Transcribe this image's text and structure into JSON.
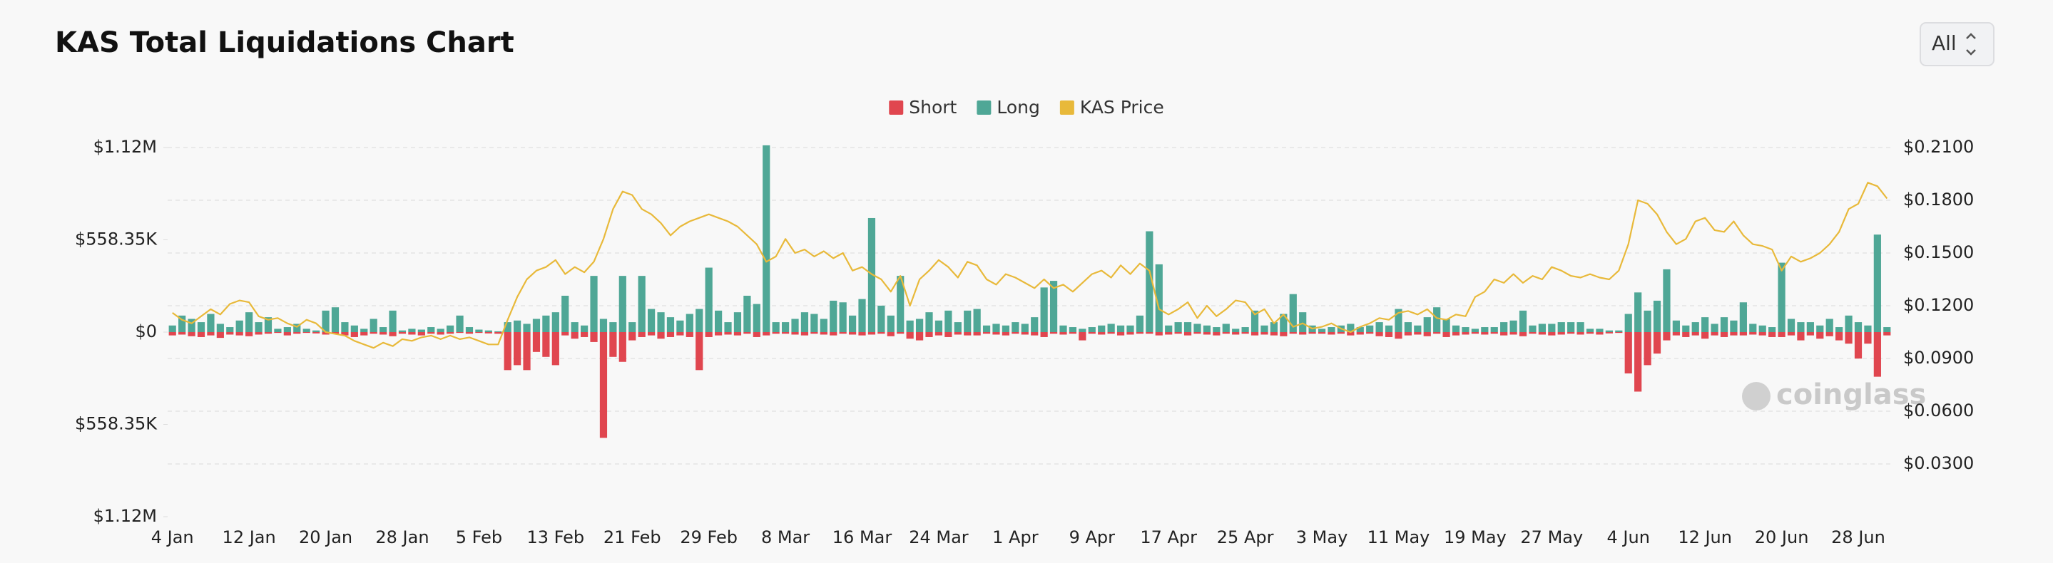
{
  "chart_data": {
    "type": "bar",
    "title": "KAS Total Liquidations Chart",
    "categories": [
      "4 Jan",
      null,
      null,
      null,
      null,
      null,
      null,
      null,
      "12 Jan",
      null,
      null,
      null,
      null,
      null,
      null,
      null,
      "20 Jan",
      null,
      null,
      null,
      null,
      null,
      null,
      null,
      "28 Jan",
      null,
      null,
      null,
      null,
      null,
      null,
      null,
      "5 Feb",
      null,
      null,
      null,
      null,
      null,
      null,
      null,
      "13 Feb",
      null,
      null,
      null,
      null,
      null,
      null,
      null,
      "21 Feb",
      null,
      null,
      null,
      null,
      null,
      null,
      null,
      "29 Feb",
      null,
      null,
      null,
      null,
      null,
      null,
      null,
      "8 Mar",
      null,
      null,
      null,
      null,
      null,
      null,
      null,
      "16 Mar",
      null,
      null,
      null,
      null,
      null,
      null,
      null,
      "24 Mar",
      null,
      null,
      null,
      null,
      null,
      null,
      null,
      "1 Apr",
      null,
      null,
      null,
      null,
      null,
      null,
      null,
      "9 Apr",
      null,
      null,
      null,
      null,
      null,
      null,
      null,
      "17 Apr",
      null,
      null,
      null,
      null,
      null,
      null,
      null,
      "25 Apr",
      null,
      null,
      null,
      null,
      null,
      null,
      null,
      "3 May",
      null,
      null,
      null,
      null,
      null,
      null,
      null,
      "11 May",
      null,
      null,
      null,
      null,
      null,
      null,
      null,
      "19 May",
      null,
      null,
      null,
      null,
      null,
      null,
      null,
      "27 May",
      null,
      null,
      null,
      null,
      null,
      null,
      null,
      "4 Jun",
      null,
      null,
      null,
      null,
      null,
      null,
      null,
      "12 Jun",
      null,
      null,
      null,
      null,
      null,
      null,
      null,
      "20 Jun",
      null,
      null,
      null,
      null,
      null,
      null,
      null,
      "28 Jun",
      null,
      null,
      null
    ],
    "series": [
      {
        "name": "Short",
        "color": "#e0464f",
        "values": [
          -20000,
          -15000,
          -25000,
          -30000,
          -20000,
          -35000,
          -15000,
          -20000,
          -25000,
          -15000,
          -10000,
          -5000,
          -20000,
          -10000,
          -5000,
          -8000,
          -15000,
          -10000,
          -20000,
          -30000,
          -20000,
          -10000,
          -15000,
          -25000,
          -10000,
          -15000,
          -20000,
          -10000,
          -15000,
          -10000,
          -5000,
          -10000,
          -5000,
          -8000,
          -10000,
          -230000,
          -200000,
          -230000,
          -120000,
          -150000,
          -200000,
          -20000,
          -40000,
          -30000,
          -60000,
          -640000,
          -150000,
          -180000,
          -50000,
          -30000,
          -20000,
          -40000,
          -30000,
          -20000,
          -30000,
          -230000,
          -30000,
          -20000,
          -15000,
          -20000,
          -10000,
          -30000,
          -20000,
          -10000,
          -10000,
          -15000,
          -20000,
          -10000,
          -15000,
          -20000,
          -10000,
          -15000,
          -20000,
          -15000,
          -10000,
          -25000,
          -10000,
          -40000,
          -50000,
          -30000,
          -20000,
          -30000,
          -15000,
          -20000,
          -20000,
          -10000,
          -15000,
          -20000,
          -10000,
          -15000,
          -20000,
          -30000,
          -10000,
          -15000,
          -10000,
          -50000,
          -10000,
          -15000,
          -10000,
          -20000,
          -15000,
          -10000,
          -10000,
          -20000,
          -15000,
          -10000,
          -20000,
          -10000,
          -15000,
          -20000,
          -10000,
          -15000,
          -10000,
          -20000,
          -15000,
          -20000,
          -25000,
          -10000,
          -15000,
          -10000,
          -10000,
          -15000,
          -10000,
          -20000,
          -15000,
          -10000,
          -25000,
          -30000,
          -40000,
          -20000,
          -15000,
          -25000,
          -10000,
          -30000,
          -20000,
          -15000,
          -10000,
          -15000,
          -10000,
          -20000,
          -15000,
          -25000,
          -10000,
          -15000,
          -20000,
          -15000,
          -10000,
          -15000,
          -10000,
          -15000,
          -8000,
          -5000,
          -250000,
          -360000,
          -200000,
          -130000,
          -50000,
          -20000,
          -30000,
          -20000,
          -40000,
          -20000,
          -30000,
          -20000,
          -20000,
          -15000,
          -20000,
          -30000,
          -30000,
          -20000,
          -50000,
          -20000,
          -40000,
          -25000,
          -50000,
          -70000,
          -160000,
          -70000,
          -270000,
          -20000
        ]
      },
      {
        "name": "Long",
        "color": "#4fa796",
        "values": [
          40000,
          100000,
          80000,
          60000,
          110000,
          50000,
          30000,
          70000,
          120000,
          60000,
          90000,
          20000,
          30000,
          50000,
          20000,
          10000,
          130000,
          150000,
          60000,
          40000,
          20000,
          80000,
          30000,
          130000,
          10000,
          20000,
          15000,
          30000,
          20000,
          40000,
          100000,
          30000,
          15000,
          10000,
          5000,
          60000,
          70000,
          50000,
          80000,
          100000,
          120000,
          220000,
          60000,
          40000,
          340000,
          80000,
          60000,
          340000,
          60000,
          340000,
          140000,
          120000,
          90000,
          70000,
          110000,
          140000,
          390000,
          130000,
          60000,
          120000,
          220000,
          170000,
          1130000,
          60000,
          60000,
          80000,
          120000,
          110000,
          80000,
          190000,
          180000,
          100000,
          200000,
          690000,
          160000,
          100000,
          340000,
          70000,
          80000,
          120000,
          70000,
          130000,
          60000,
          130000,
          140000,
          40000,
          50000,
          40000,
          60000,
          50000,
          90000,
          270000,
          310000,
          40000,
          30000,
          20000,
          30000,
          40000,
          50000,
          40000,
          40000,
          100000,
          610000,
          410000,
          40000,
          60000,
          60000,
          50000,
          40000,
          30000,
          50000,
          20000,
          30000,
          130000,
          40000,
          60000,
          110000,
          230000,
          120000,
          40000,
          20000,
          30000,
          40000,
          50000,
          30000,
          40000,
          60000,
          40000,
          140000,
          60000,
          40000,
          90000,
          150000,
          80000,
          40000,
          30000,
          20000,
          30000,
          30000,
          60000,
          70000,
          130000,
          40000,
          50000,
          50000,
          60000,
          60000,
          60000,
          20000,
          20000,
          10000,
          10000,
          110000,
          240000,
          130000,
          190000,
          380000,
          70000,
          40000,
          60000,
          90000,
          50000,
          90000,
          70000,
          180000,
          50000,
          40000,
          30000,
          420000,
          80000,
          60000,
          60000,
          40000,
          80000,
          30000,
          100000,
          60000,
          40000,
          590000,
          30000
        ]
      },
      {
        "name": "KAS Price",
        "color": "#e8b93a",
        "axis": "y2",
        "values": [
          0.116,
          0.112,
          0.11,
          0.114,
          0.118,
          0.115,
          0.121,
          0.123,
          0.122,
          0.114,
          0.112,
          0.113,
          0.11,
          0.108,
          0.112,
          0.11,
          0.105,
          0.104,
          0.103,
          0.1,
          0.098,
          0.096,
          0.099,
          0.097,
          0.101,
          0.1,
          0.102,
          0.103,
          0.101,
          0.103,
          0.101,
          0.102,
          0.1,
          0.098,
          0.098,
          0.112,
          0.125,
          0.135,
          0.14,
          0.142,
          0.146,
          0.138,
          0.142,
          0.139,
          0.145,
          0.158,
          0.175,
          0.185,
          0.183,
          0.175,
          0.172,
          0.167,
          0.16,
          0.165,
          0.168,
          0.17,
          0.172,
          0.17,
          0.168,
          0.165,
          0.16,
          0.155,
          0.145,
          0.148,
          0.158,
          0.15,
          0.152,
          0.148,
          0.151,
          0.147,
          0.15,
          0.14,
          0.142,
          0.138,
          0.135,
          0.128,
          0.137,
          0.12,
          0.135,
          0.14,
          0.146,
          0.142,
          0.136,
          0.145,
          0.143,
          0.135,
          0.132,
          0.138,
          0.136,
          0.133,
          0.13,
          0.135,
          0.13,
          0.132,
          0.128,
          0.133,
          0.138,
          0.14,
          0.136,
          0.143,
          0.138,
          0.144,
          0.14,
          0.118,
          0.115,
          0.118,
          0.122,
          0.113,
          0.12,
          0.114,
          0.118,
          0.123,
          0.122,
          0.115,
          0.118,
          0.11,
          0.115,
          0.108,
          0.11,
          0.107,
          0.108,
          0.11,
          0.107,
          0.105,
          0.108,
          0.11,
          0.113,
          0.112,
          0.116,
          0.117,
          0.115,
          0.118,
          0.113,
          0.112,
          0.115,
          0.114,
          0.125,
          0.128,
          0.135,
          0.133,
          0.138,
          0.133,
          0.137,
          0.135,
          0.142,
          0.14,
          0.137,
          0.136,
          0.138,
          0.136,
          0.135,
          0.14,
          0.155,
          0.18,
          0.178,
          0.172,
          0.162,
          0.155,
          0.158,
          0.168,
          0.17,
          0.163,
          0.162,
          0.168,
          0.16,
          0.155,
          0.154,
          0.152,
          0.14,
          0.148,
          0.145,
          0.147,
          0.15,
          0.155,
          0.162,
          0.175,
          0.178,
          0.19,
          0.188,
          0.181
        ]
      }
    ],
    "ylim": [
      -1116700,
      1116700
    ],
    "yticks": [
      {
        "value": -1116700,
        "label": "$1.12M"
      },
      {
        "value": -558350,
        "label": "$558.35K"
      },
      {
        "value": 0,
        "label": "$0"
      },
      {
        "value": 558350,
        "label": "$558.35K"
      },
      {
        "value": 1116700,
        "label": "$1.12M"
      }
    ],
    "y2lim": [
      0,
      0.21
    ],
    "y2ticks": [
      {
        "value": 0.03,
        "label": "$0.0300"
      },
      {
        "value": 0.06,
        "label": "$0.0600"
      },
      {
        "value": 0.09,
        "label": "$0.0900"
      },
      {
        "value": 0.12,
        "label": "$0.1200"
      },
      {
        "value": 0.15,
        "label": "$0.1500"
      },
      {
        "value": 0.18,
        "label": "$0.1800"
      },
      {
        "value": 0.21,
        "label": "$0.2100"
      }
    ],
    "grid": true,
    "legend": "top"
  },
  "range_selector": "All",
  "watermark": "coinglass"
}
